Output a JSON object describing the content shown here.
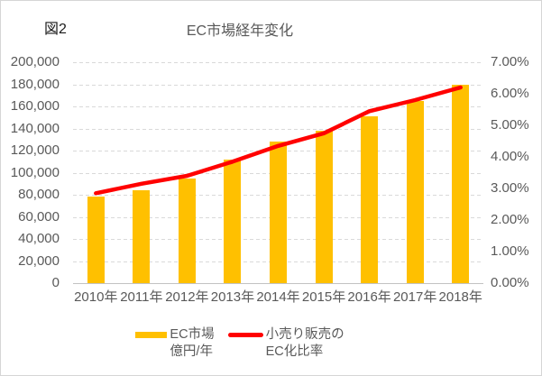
{
  "figure_label": "図2",
  "chart_data": {
    "type": "bar",
    "subtype": "combo: bars (left axis) + line (right axis), dual y-axes",
    "title": "EC市場経年変化",
    "categories": [
      "2010年",
      "2011年",
      "2012年",
      "2013年",
      "2014年",
      "2015年",
      "2016年",
      "2017年",
      "2018年"
    ],
    "series": [
      {
        "name": "EC市場 億円/年",
        "type": "bar",
        "axis": "left",
        "color": "#FFC000",
        "values": [
          78000,
          84500,
          95000,
          111500,
          128000,
          138000,
          151000,
          165000,
          180000
        ]
      },
      {
        "name": "小売り販売のEC化比率",
        "type": "line",
        "axis": "right",
        "color": "#FF0000",
        "values": [
          2.85,
          3.15,
          3.4,
          3.85,
          4.35,
          4.75,
          5.45,
          5.8,
          6.2
        ]
      }
    ],
    "left_axis": {
      "min": 0,
      "max": 200000,
      "step": 20000,
      "tick_labels": [
        "200,000",
        "180,000",
        "160,000",
        "140,000",
        "120,000",
        "100,000",
        "80,000",
        "60,000",
        "40,000",
        "20,000",
        "0"
      ]
    },
    "right_axis": {
      "min": 0,
      "max": 7,
      "step": 1,
      "tick_labels": [
        "7.00%",
        "6.00%",
        "5.00%",
        "4.00%",
        "3.00%",
        "2.00%",
        "1.00%",
        "0.00%"
      ]
    },
    "grid": "horizontal dashed gridlines",
    "legend_position": "bottom"
  },
  "legend": {
    "items": [
      {
        "line1": "EC市場",
        "line2": "億円/年",
        "swatch": "bar",
        "color": "#FFC000"
      },
      {
        "line1": "小売り販売の",
        "line2": "EC化比率",
        "swatch": "line",
        "color": "#FF0000"
      }
    ]
  },
  "colors": {
    "bar": "#FFC000",
    "line": "#FF0000",
    "text": "#595959",
    "grid": "#D9D9D9",
    "axis_line": "#C3C3C3",
    "border": "#D6D6D6",
    "background": "#FFFFFF"
  }
}
